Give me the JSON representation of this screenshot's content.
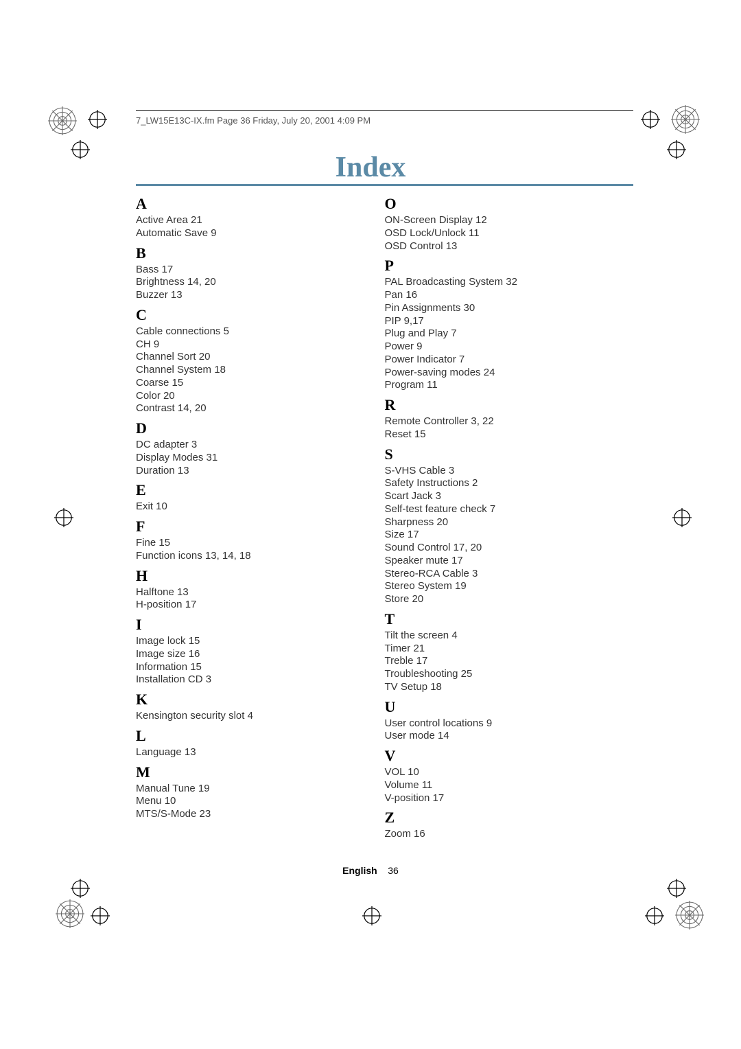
{
  "header": {
    "text": "7_LW15E13C-IX.fm  Page 36  Friday, July 20, 2001  4:09 PM"
  },
  "title": "Index",
  "colors": {
    "title_color": "#5b8aa6",
    "text_color": "#333333",
    "header_color": "#555555",
    "background": "#ffffff"
  },
  "columns": [
    {
      "groups": [
        {
          "letter": "A",
          "entries": [
            "Active Area 21",
            "Automatic Save  9"
          ]
        },
        {
          "letter": "B",
          "entries": [
            "Bass   17",
            "Brightness  14, 20",
            "Buzzer   13"
          ]
        },
        {
          "letter": "C",
          "entries": [
            "Cable connections   5",
            "CH   9",
            "Channel Sort   20",
            "Channel System   18",
            "Coarse   15",
            "Color  20",
            "Contrast  14, 20"
          ]
        },
        {
          "letter": "D",
          "entries": [
            "DC adapter   3",
            "Display Modes   31",
            "Duration   13"
          ]
        },
        {
          "letter": "E",
          "entries": [
            "Exit   10"
          ]
        },
        {
          "letter": "F",
          "entries": [
            "Fine   15",
            "Function icons   13, 14, 18"
          ]
        },
        {
          "letter": "H",
          "entries": [
            "Halftone   13",
            "H-position   17"
          ]
        },
        {
          "letter": "I",
          "entries": [
            "Image lock   15",
            "Image size   16",
            "Information   15",
            "Installation CD   3"
          ]
        },
        {
          "letter": "K",
          "entries": [
            "Kensington security slot   4"
          ]
        },
        {
          "letter": "L",
          "entries": [
            "Language   13"
          ]
        },
        {
          "letter": "M",
          "entries": [
            "Manual Tune   19",
            "Menu   10",
            "MTS/S-Mode   23"
          ]
        }
      ]
    },
    {
      "groups": [
        {
          "letter": "O",
          "entries": [
            "ON-Screen Display   12",
            "OSD Lock/Unlock   11",
            "OSD Control   13"
          ]
        },
        {
          "letter": "P",
          "entries": [
            "PAL Broadcasting System   32",
            "Pan   16",
            "Pin Assignments   30",
            "PIP   9,17",
            "Plug and Play   7",
            "Power   9",
            "Power  Indicator   7",
            "Power-saving modes   24",
            "Program   11"
          ]
        },
        {
          "letter": "R",
          "entries": [
            "Remote Controller   3, 22",
            "Reset   15"
          ]
        },
        {
          "letter": "S",
          "entries": [
            "S-VHS Cable   3",
            "Safety Instructions    2",
            "Scart Jack   3",
            "Self-test feature check   7",
            "Sharpness   20",
            "Size   17",
            "Sound Control   17, 20",
            "Speaker mute   17",
            "Stereo-RCA Cable   3",
            "Stereo System   19",
            "Store   20"
          ]
        },
        {
          "letter": "T",
          "entries": [
            "Tilt the screen  4",
            "Timer   21",
            "Treble   17",
            "Troubleshooting 25",
            "TV Setup   18"
          ]
        },
        {
          "letter": "U",
          "entries": [
            "User control locations   9",
            "User mode   14"
          ]
        },
        {
          "letter": "V",
          "entries": [
            "VOL   10",
            "Volume   11",
            "V-position   17"
          ]
        },
        {
          "letter": "Z",
          "entries": [
            "Zoom   16"
          ]
        }
      ]
    }
  ],
  "footer": {
    "language": "English",
    "page": "36"
  }
}
